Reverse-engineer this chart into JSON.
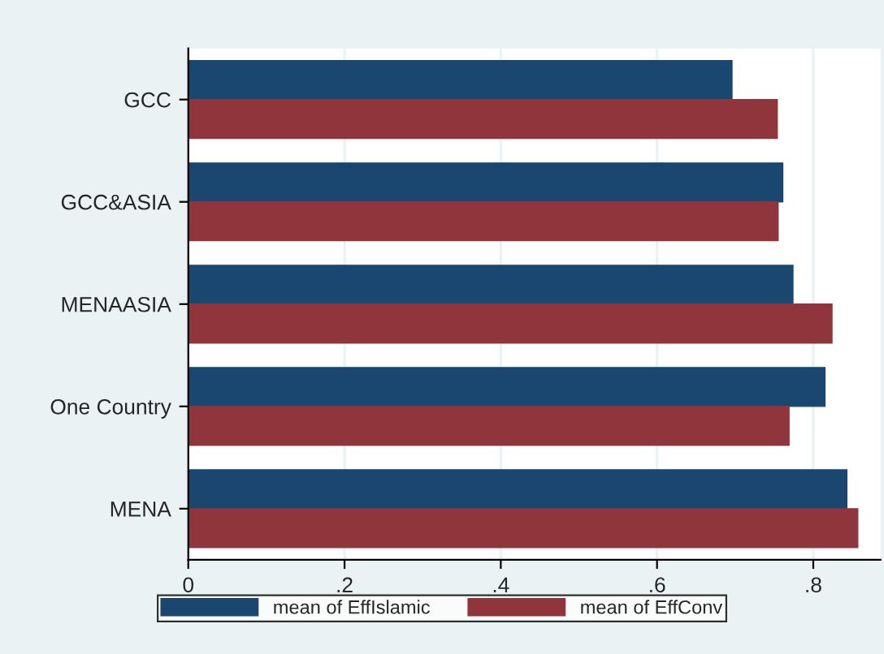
{
  "chart_data": {
    "type": "bar",
    "orientation": "horizontal",
    "categories": [
      "GCC",
      "GCC&ASIA",
      "MENAASIA",
      "One Country",
      "MENA"
    ],
    "series": [
      {
        "name": "mean of EffIslamic",
        "color": "#1a476f",
        "values": [
          0.696,
          0.761,
          0.774,
          0.815,
          0.843
        ]
      },
      {
        "name": "mean of EffConv",
        "color": "#90353b",
        "values": [
          0.754,
          0.755,
          0.824,
          0.769,
          0.857
        ]
      }
    ],
    "xlim": [
      0,
      0.886
    ],
    "xticks": [
      0,
      {
        "value": 0.2,
        "label": ".2"
      },
      {
        "value": 0.4,
        "label": ".4"
      },
      {
        "value": 0.6,
        "label": ".6"
      },
      {
        "value": 0.8,
        "label": ".8"
      }
    ],
    "grid": "x",
    "legend": "bottom"
  }
}
